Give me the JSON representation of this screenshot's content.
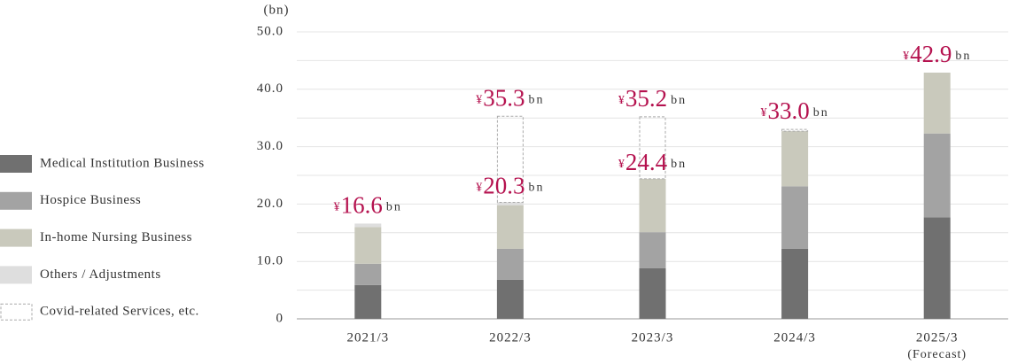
{
  "chart_data": {
    "type": "stacked-bar",
    "y_axis_label": "(bn)",
    "categories": [
      "2021/3",
      "2022/3",
      "2023/3",
      "2024/3",
      "2025/3"
    ],
    "category_notes": [
      null,
      null,
      null,
      null,
      "(Forecast)"
    ],
    "series": [
      {
        "name": "Medical Institution Business",
        "color": "#707070",
        "values": [
          5.9,
          6.8,
          8.8,
          12.2,
          17.7
        ]
      },
      {
        "name": "Hospice Business",
        "color": "#a3a3a3",
        "values": [
          3.7,
          5.4,
          6.3,
          10.9,
          14.6
        ]
      },
      {
        "name": "In-home Nursing Business",
        "color": "#c9c9bc",
        "values": [
          6.4,
          7.6,
          9.3,
          9.6,
          10.6
        ]
      },
      {
        "name": "Others / Adjustments",
        "color": "#dedede",
        "values": [
          0.6,
          0.5,
          0,
          0,
          0
        ]
      },
      {
        "name": "Covid-related Services, etc.",
        "color": "#aaaaaa",
        "dashed": true,
        "values": [
          null,
          15.0,
          10.8,
          0.3,
          null
        ]
      }
    ],
    "currency_symbol": "¥",
    "amount_unit": "bn",
    "totals": {
      "values": [
        16.6,
        35.3,
        35.2,
        33.0,
        42.9
      ],
      "value_labels": [
        "16.6",
        "35.3",
        "35.2",
        "33.0",
        "42.9"
      ]
    },
    "subtotals": {
      "values": [
        null,
        20.3,
        24.4,
        null,
        null
      ],
      "value_labels": [
        null,
        "20.3",
        "24.4",
        null,
        null
      ]
    },
    "ylim": [
      0,
      50
    ],
    "yticks": [
      0,
      {
        "value": 10,
        "label": "10.0"
      },
      {
        "value": 20,
        "label": "20.0"
      },
      {
        "value": 30,
        "label": "30.0"
      },
      {
        "value": 40,
        "label": "40.0"
      },
      {
        "value": 50,
        "label": "50.0"
      }
    ],
    "minor_yticks": [
      5,
      15,
      25,
      35,
      45
    ],
    "grid": true
  }
}
